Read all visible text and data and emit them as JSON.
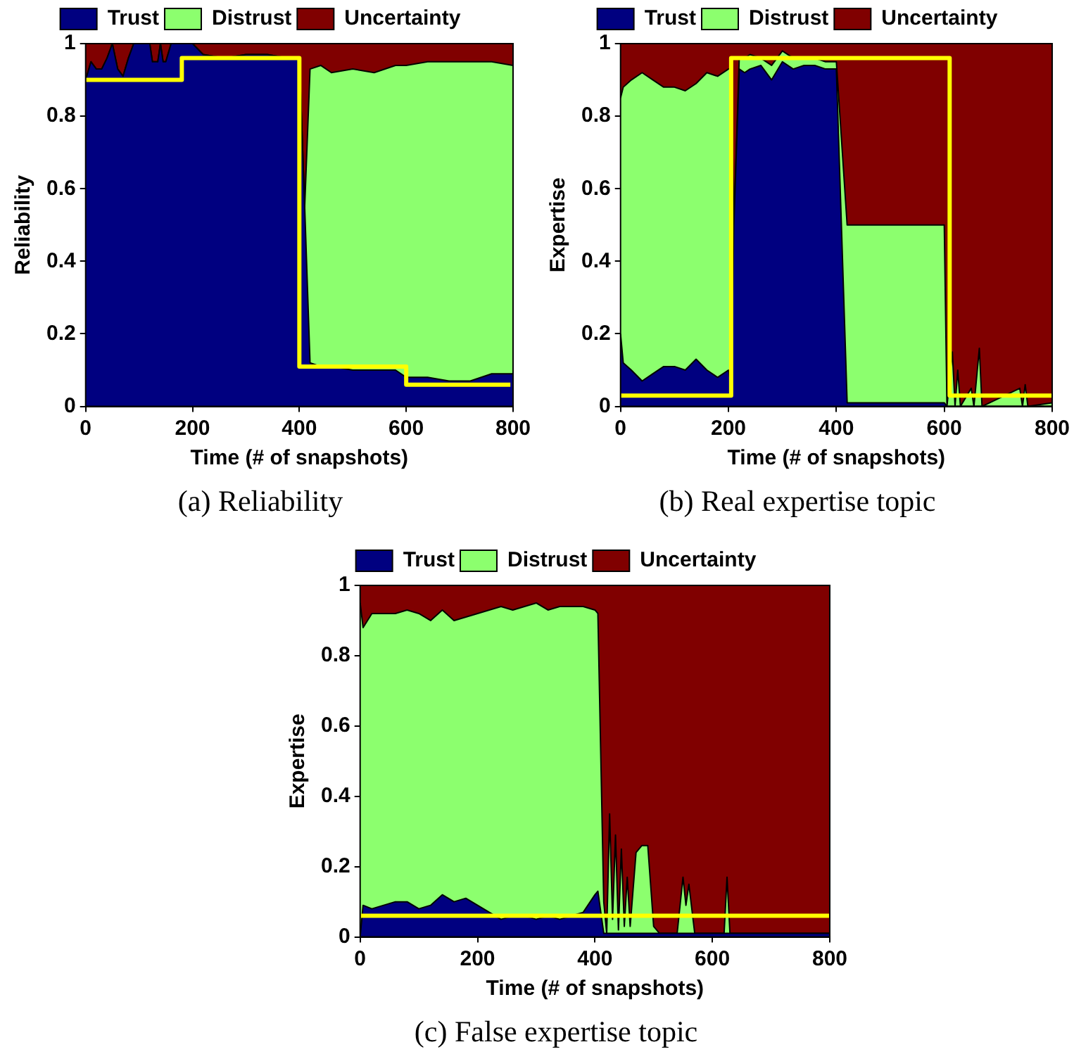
{
  "chart_data": [
    {
      "type": "area",
      "stacked": true,
      "title": "(a) Reliability",
      "xlabel": "Time (# of snapshots)",
      "ylabel": "Reliability",
      "legend": "top",
      "xlim": [
        0,
        800
      ],
      "xticks": [
        0,
        200,
        400,
        600,
        800
      ],
      "ylim": [
        0,
        1
      ],
      "yticks": [
        0,
        0.2,
        0.4,
        0.6,
        0.8,
        1
      ],
      "x": [
        0,
        10,
        20,
        30,
        40,
        50,
        60,
        70,
        80,
        90,
        120,
        125,
        135,
        140,
        145,
        150,
        160,
        200,
        220,
        260,
        300,
        340,
        380,
        400,
        410,
        420,
        440,
        460,
        500,
        540,
        580,
        600,
        640,
        680,
        720,
        760,
        800
      ],
      "series": [
        {
          "name": "Trust",
          "color": "#000080",
          "values": [
            0.9,
            0.95,
            0.93,
            0.93,
            0.96,
            1.0,
            0.93,
            0.91,
            0.96,
            1.0,
            1.0,
            0.95,
            0.95,
            1.0,
            0.95,
            0.95,
            1.0,
            1.0,
            0.97,
            0.96,
            0.97,
            0.97,
            0.96,
            0.96,
            0.55,
            0.12,
            0.11,
            0.11,
            0.1,
            0.1,
            0.1,
            0.08,
            0.08,
            0.07,
            0.07,
            0.09,
            0.09
          ]
        },
        {
          "name": "Distrust",
          "color": "#8cff6e",
          "values": [
            0,
            0,
            0,
            0,
            0,
            0,
            0,
            0,
            0,
            0,
            0,
            0,
            0,
            0,
            0,
            0,
            0,
            0,
            0,
            0,
            0,
            0,
            0,
            0,
            0,
            0.81,
            0.83,
            0.81,
            0.83,
            0.82,
            0.84,
            0.86,
            0.87,
            0.88,
            0.88,
            0.86,
            0.85
          ]
        },
        {
          "name": "Uncertainty",
          "color": "#800000",
          "values": [
            0.1,
            0.05,
            0.07,
            0.07,
            0.04,
            0,
            0.07,
            0.09,
            0.04,
            0,
            0,
            0.05,
            0.05,
            0,
            0.05,
            0.05,
            0,
            0,
            0.03,
            0.04,
            0.03,
            0.03,
            0.04,
            0.04,
            0.45,
            0.07,
            0.06,
            0.08,
            0.07,
            0.08,
            0.06,
            0.06,
            0.05,
            0.05,
            0.05,
            0.05,
            0.06
          ]
        },
        {
          "type": "step",
          "color": "#ffff00",
          "x": [
            0,
            180,
            400,
            600,
            795
          ],
          "values": [
            0.9,
            0.96,
            0.11,
            0.06,
            0.06
          ]
        }
      ]
    },
    {
      "type": "area",
      "stacked": true,
      "title": "(b) Real expertise topic",
      "xlabel": "Time (# of snapshots)",
      "ylabel": "Expertise",
      "legend": "top",
      "xlim": [
        0,
        800
      ],
      "xticks": [
        0,
        200,
        400,
        600,
        800
      ],
      "ylim": [
        0,
        1
      ],
      "yticks": [
        0,
        0.2,
        0.4,
        0.6,
        0.8,
        1
      ],
      "x": [
        0,
        5,
        20,
        40,
        60,
        80,
        100,
        120,
        140,
        160,
        180,
        200,
        205,
        210,
        220,
        230,
        240,
        260,
        280,
        300,
        320,
        340,
        360,
        380,
        400,
        420,
        500,
        600,
        605,
        615,
        620,
        625,
        630,
        650,
        655,
        665,
        670,
        740,
        745,
        750,
        755,
        800
      ],
      "series": [
        {
          "name": "Trust",
          "color": "#000080",
          "values": [
            0.2,
            0.12,
            0.1,
            0.07,
            0.09,
            0.11,
            0.11,
            0.1,
            0.13,
            0.1,
            0.08,
            0.1,
            0.06,
            0.5,
            0.93,
            0.92,
            0.93,
            0.94,
            0.9,
            0.95,
            0.93,
            0.94,
            0.94,
            0.93,
            0.93,
            0.01,
            0.01,
            0.01,
            0,
            0,
            0,
            0,
            0,
            0,
            0,
            0,
            0,
            0,
            0,
            0,
            0,
            0
          ]
        },
        {
          "name": "Distrust",
          "color": "#8cff6e",
          "values": [
            0.65,
            0.76,
            0.8,
            0.85,
            0.81,
            0.77,
            0.77,
            0.77,
            0.76,
            0.82,
            0.83,
            0.83,
            0.87,
            0,
            0.03,
            0.04,
            0.04,
            0.02,
            0.04,
            0.03,
            0.03,
            0.02,
            0.02,
            0.02,
            0.02,
            0.49,
            0.49,
            0.49,
            0,
            0.15,
            0,
            0.1,
            0,
            0.05,
            0,
            0.16,
            0,
            0.05,
            0,
            0.06,
            0,
            0.01
          ]
        },
        {
          "name": "Uncertainty",
          "color": "#800000",
          "values": [
            0.15,
            0.12,
            0.1,
            0.08,
            0.1,
            0.12,
            0.12,
            0.13,
            0.11,
            0.08,
            0.09,
            0.07,
            0.07,
            0.5,
            0.04,
            0.04,
            0.03,
            0.04,
            0.06,
            0.02,
            0.04,
            0.04,
            0.04,
            0.05,
            0.05,
            0.5,
            0.5,
            0.5,
            1,
            0.85,
            1,
            0.9,
            1,
            0.95,
            1,
            0.84,
            1,
            0.95,
            1,
            0.94,
            1,
            0.99
          ]
        },
        {
          "type": "step",
          "color": "#ffff00",
          "x": [
            0,
            205,
            610,
            800
          ],
          "values": [
            0.03,
            0.96,
            0.03,
            0.03
          ]
        }
      ]
    },
    {
      "type": "area",
      "stacked": true,
      "title": "(c) False expertise topic",
      "xlabel": "Time (# of snapshots)",
      "ylabel": "Expertise",
      "legend": "top",
      "xlim": [
        0,
        800
      ],
      "xticks": [
        0,
        200,
        400,
        600,
        800
      ],
      "ylim": [
        0,
        1
      ],
      "yticks": [
        0,
        0.2,
        0.4,
        0.6,
        0.8,
        1
      ],
      "x": [
        0,
        5,
        20,
        40,
        60,
        80,
        100,
        120,
        140,
        160,
        180,
        200,
        220,
        240,
        260,
        280,
        300,
        320,
        340,
        360,
        380,
        400,
        405,
        415,
        420,
        425,
        430,
        435,
        440,
        445,
        450,
        455,
        460,
        470,
        480,
        490,
        500,
        510,
        540,
        550,
        555,
        560,
        570,
        580,
        620,
        625,
        630,
        800
      ],
      "series": [
        {
          "name": "Trust",
          "color": "#000080",
          "values": [
            0,
            0.09,
            0.08,
            0.09,
            0.1,
            0.1,
            0.08,
            0.09,
            0.12,
            0.1,
            0.11,
            0.09,
            0.07,
            0.05,
            0.06,
            0.06,
            0.05,
            0.06,
            0.05,
            0.06,
            0.07,
            0.12,
            0.13,
            0.01,
            0.01,
            0.01,
            0.01,
            0.01,
            0.01,
            0.01,
            0.01,
            0.01,
            0.01,
            0.01,
            0.01,
            0.01,
            0.01,
            0.01,
            0.01,
            0.01,
            0.01,
            0.01,
            0.01,
            0.01,
            0.01,
            0.01,
            0.01,
            0.01
          ]
        },
        {
          "name": "Distrust",
          "color": "#8cff6e",
          "values": [
            0.95,
            0.79,
            0.84,
            0.83,
            0.82,
            0.83,
            0.84,
            0.81,
            0.81,
            0.8,
            0.8,
            0.83,
            0.86,
            0.89,
            0.87,
            0.88,
            0.9,
            0.87,
            0.89,
            0.88,
            0.87,
            0.81,
            0.79,
            0.09,
            0,
            0.34,
            0.04,
            0.28,
            0.01,
            0.24,
            0.02,
            0.16,
            0.02,
            0.23,
            0.25,
            0.25,
            0.02,
            0,
            0,
            0.16,
            0.08,
            0.14,
            0,
            0,
            0,
            0.16,
            0,
            0
          ]
        },
        {
          "name": "Uncertainty",
          "color": "#800000",
          "values": [
            0.05,
            0.12,
            0.08,
            0.08,
            0.08,
            0.07,
            0.08,
            0.1,
            0.07,
            0.1,
            0.09,
            0.08,
            0.07,
            0.06,
            0.07,
            0.06,
            0.05,
            0.07,
            0.06,
            0.06,
            0.06,
            0.07,
            0.08,
            0.9,
            0.99,
            0.65,
            0.95,
            0.71,
            0.98,
            0.75,
            0.97,
            0.83,
            0.97,
            0.76,
            0.74,
            0.74,
            0.97,
            0.99,
            0.99,
            0.83,
            0.91,
            0.85,
            0.99,
            0.99,
            0.99,
            0.83,
            0.99,
            0.99
          ]
        },
        {
          "type": "step",
          "color": "#ffff00",
          "x": [
            0,
            800
          ],
          "values": [
            0.06,
            0.06
          ]
        }
      ]
    }
  ]
}
